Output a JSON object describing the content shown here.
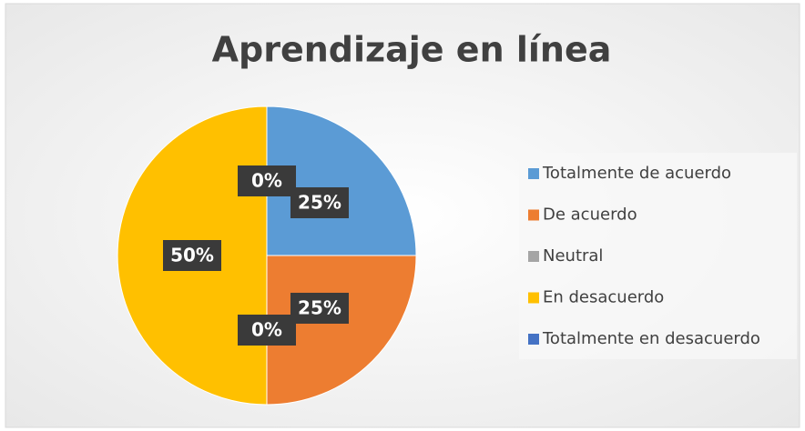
{
  "chart_data": {
    "type": "pie",
    "title": "Aprendizaje en línea",
    "categories": [
      "Totalmente de acuerdo",
      "De acuerdo",
      "Neutral",
      "En desacuerdo",
      "Totalmente en desacuerdo"
    ],
    "values": [
      25,
      25,
      0,
      50,
      0
    ],
    "value_labels": [
      "25%",
      "25%",
      "0%",
      "50%",
      "0%"
    ],
    "colors": [
      "#5b9bd5",
      "#ed7d31",
      "#a5a5a5",
      "#ffc000",
      "#4472c4"
    ],
    "legend": "right"
  }
}
